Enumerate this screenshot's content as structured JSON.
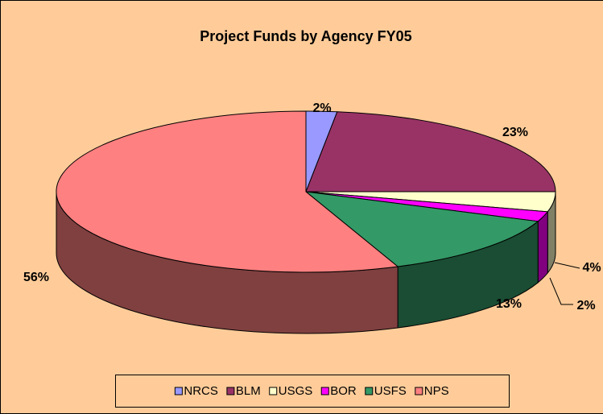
{
  "chart_data": {
    "type": "pie3d",
    "title": "Project Funds by Agency FY05",
    "categories": [
      "NRCS",
      "BLM",
      "USGS",
      "BOR",
      "USFS",
      "NPS"
    ],
    "values": [
      2,
      23,
      4,
      2,
      13,
      56
    ],
    "value_labels": [
      "2%",
      "23%",
      "4%",
      "2%",
      "13%",
      "56%"
    ],
    "colors": [
      "#9999ff",
      "#993366",
      "#ffffcc",
      "#ff00ff",
      "#339966",
      "#ff8080"
    ],
    "legend": "bottom"
  }
}
